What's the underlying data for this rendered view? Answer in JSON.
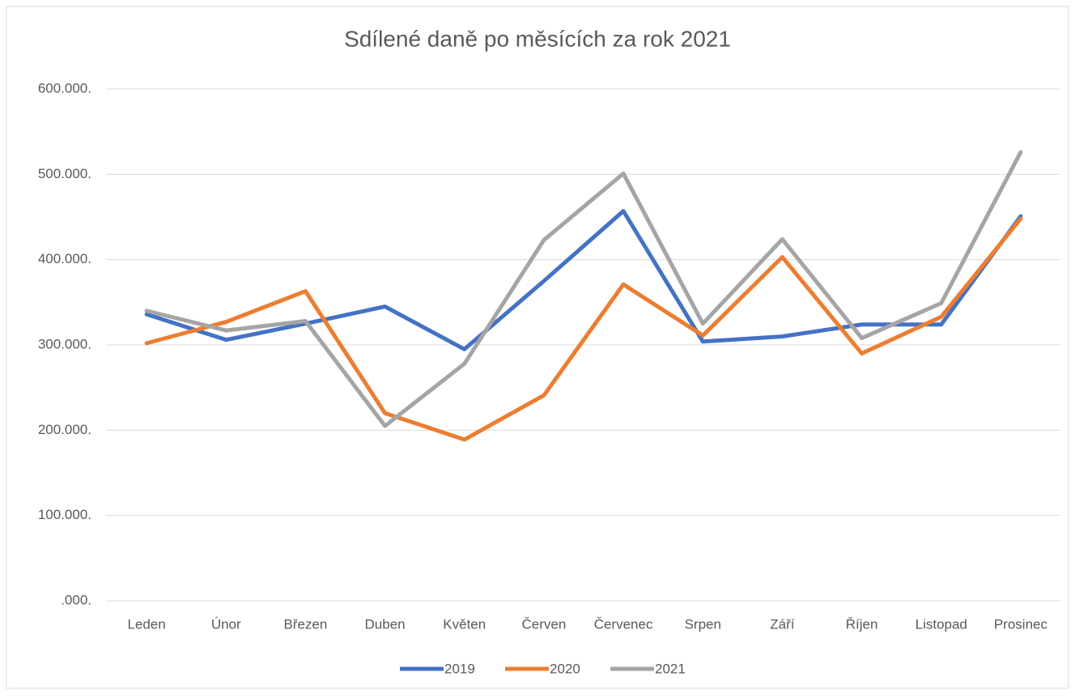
{
  "chart_data": {
    "type": "line",
    "title": "Sdílené daně po měsících za rok 2021",
    "categories": [
      "Leden",
      "Únor",
      "Březen",
      "Duben",
      "Květen",
      "Červen",
      "Červenec",
      "Srpen",
      "Září",
      "Říjen",
      "Listopad",
      "Prosinec"
    ],
    "series": [
      {
        "name": "2019",
        "color": "#4472c4",
        "values": [
          336000,
          306000,
          325000,
          345000,
          295000,
          375000,
          457000,
          304000,
          310000,
          324000,
          324000,
          451000
        ]
      },
      {
        "name": "2020",
        "color": "#ed7d31",
        "values": [
          302000,
          327000,
          363000,
          220000,
          189000,
          241000,
          371000,
          311000,
          403000,
          290000,
          333000,
          448000
        ]
      },
      {
        "name": "2021",
        "color": "#a5a5a5",
        "values": [
          340000,
          317000,
          328000,
          205000,
          278000,
          423000,
          501000,
          325000,
          424000,
          308000,
          349000,
          526000
        ]
      }
    ],
    "ylim": [
      0,
      600000
    ],
    "yticks": [
      {
        "value": 0,
        "label": ".000."
      },
      {
        "value": 100000,
        "label": "100.000."
      },
      {
        "value": 200000,
        "label": "200.000."
      },
      {
        "value": 300000,
        "label": "300.000."
      },
      {
        "value": 400000,
        "label": "400.000."
      },
      {
        "value": 500000,
        "label": "500.000."
      },
      {
        "value": 600000,
        "label": "600.000."
      }
    ],
    "grid": true,
    "legend": "bottom"
  }
}
